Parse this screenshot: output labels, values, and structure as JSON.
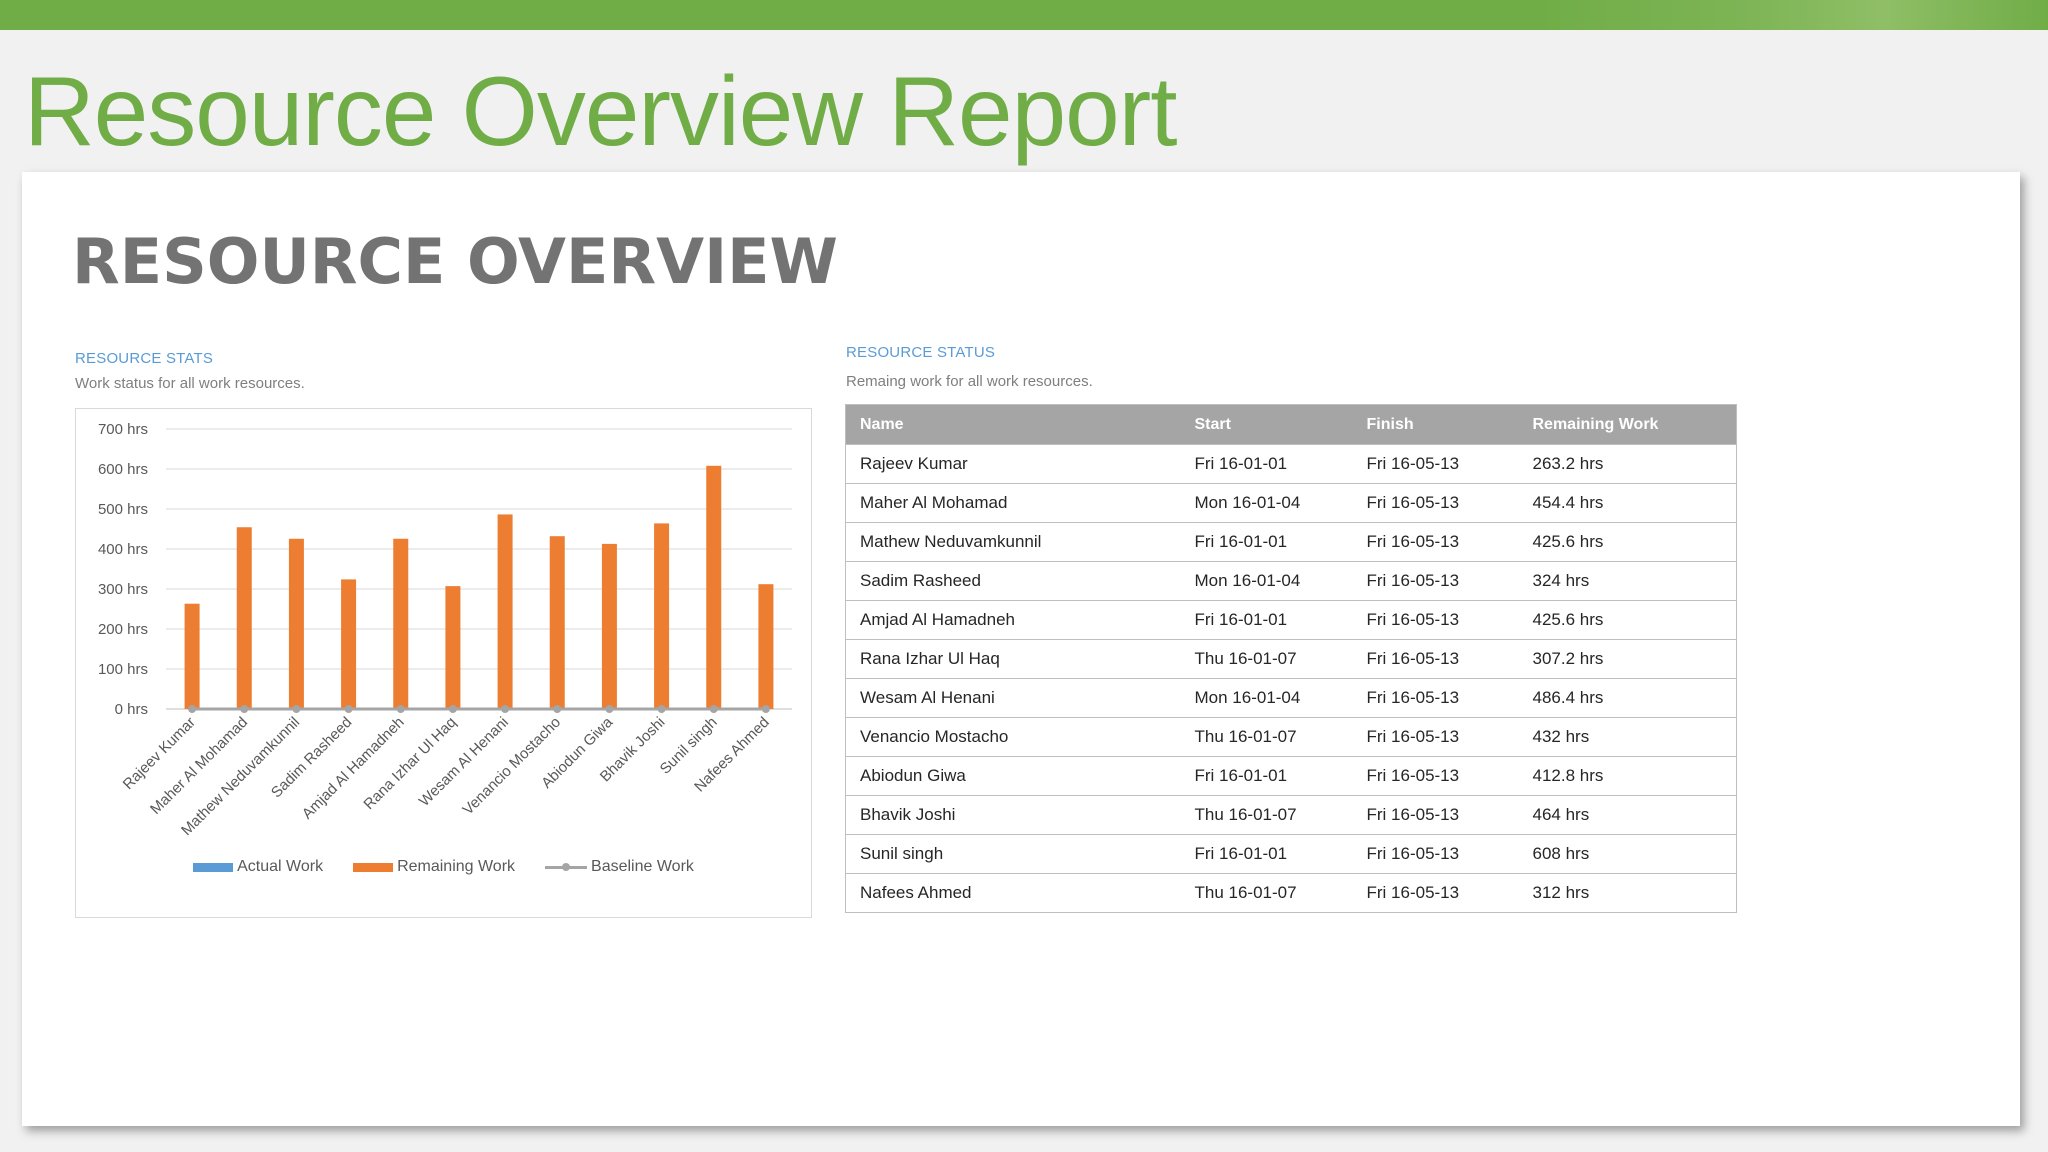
{
  "report_title": "Resource Overview Report",
  "page": {
    "heading": "RESOURCE OVERVIEW"
  },
  "stats": {
    "title": "RESOURCE STATS",
    "subtitle": "Work status for all work resources."
  },
  "status": {
    "title": "RESOURCE STATUS",
    "subtitle": "Remaing work for all work resources.",
    "columns": [
      "Name",
      "Start",
      "Finish",
      "Remaining Work"
    ],
    "rows": [
      [
        "Rajeev Kumar",
        "Fri 16-01-01",
        "Fri 16-05-13",
        "263.2 hrs"
      ],
      [
        "Maher Al Mohamad",
        "Mon 16-01-04",
        "Fri 16-05-13",
        "454.4 hrs"
      ],
      [
        "Mathew Neduvamkunnil",
        "Fri 16-01-01",
        "Fri 16-05-13",
        "425.6 hrs"
      ],
      [
        "Sadim Rasheed",
        "Mon 16-01-04",
        "Fri 16-05-13",
        "324 hrs"
      ],
      [
        "Amjad Al Hamadneh",
        "Fri 16-01-01",
        "Fri 16-05-13",
        "425.6 hrs"
      ],
      [
        "Rana Izhar Ul Haq",
        "Thu 16-01-07",
        "Fri 16-05-13",
        "307.2 hrs"
      ],
      [
        "Wesam Al Henani",
        "Mon 16-01-04",
        "Fri 16-05-13",
        "486.4 hrs"
      ],
      [
        "Venancio Mostacho",
        "Thu 16-01-07",
        "Fri 16-05-13",
        "432 hrs"
      ],
      [
        "Abiodun Giwa",
        "Fri 16-01-01",
        "Fri 16-05-13",
        "412.8 hrs"
      ],
      [
        "Bhavik Joshi",
        "Thu 16-01-07",
        "Fri 16-05-13",
        "464 hrs"
      ],
      [
        "Sunil singh",
        "Fri 16-01-01",
        "Fri 16-05-13",
        "608 hrs"
      ],
      [
        "Nafees Ahmed",
        "Thu 16-01-07",
        "Fri 16-05-13",
        "312 hrs"
      ]
    ]
  },
  "chart_data": {
    "type": "bar",
    "title": "",
    "xlabel": "",
    "ylabel": "",
    "ylim": [
      0,
      700
    ],
    "ytick_values": [
      0,
      100,
      200,
      300,
      400,
      500,
      600,
      700
    ],
    "ytick_labels": [
      "0 hrs",
      "100 hrs",
      "200 hrs",
      "300 hrs",
      "400 hrs",
      "500 hrs",
      "600 hrs",
      "700 hrs"
    ],
    "grid": true,
    "legend_position": "bottom",
    "categories": [
      "Rajeev Kumar",
      "Maher Al Mohamad",
      "Mathew Neduvamkunnil",
      "Sadim Rasheed",
      "Amjad Al Hamadneh",
      "Rana Izhar Ul Haq",
      "Wesam Al Henani",
      "Venancio Mostacho",
      "Abiodun Giwa",
      "Bhavik Joshi",
      "Sunil singh",
      "Nafees Ahmed"
    ],
    "series": [
      {
        "name": "Actual Work",
        "kind": "bar",
        "color": "#5b9bd5",
        "values": [
          0,
          0,
          0,
          0,
          0,
          0,
          0,
          0,
          0,
          0,
          0,
          0
        ]
      },
      {
        "name": "Remaining Work",
        "kind": "bar",
        "color": "#ed7d31",
        "values": [
          263.2,
          454.4,
          425.6,
          324,
          425.6,
          307.2,
          486.4,
          432,
          412.8,
          464,
          608,
          312
        ]
      },
      {
        "name": "Baseline Work",
        "kind": "line",
        "color": "#a5a5a5",
        "values": [
          0,
          0,
          0,
          0,
          0,
          0,
          0,
          0,
          0,
          0,
          0,
          0
        ]
      }
    ]
  }
}
